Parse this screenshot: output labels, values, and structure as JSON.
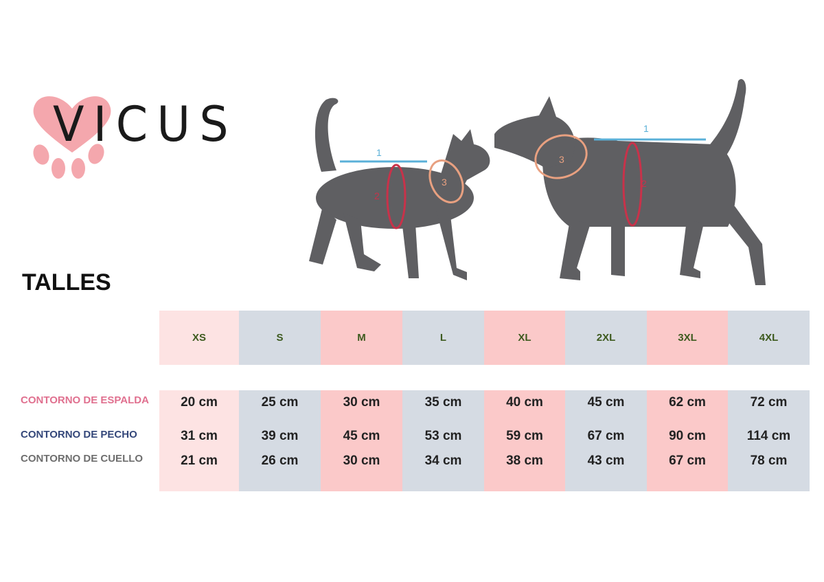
{
  "brand": {
    "name": "VICUS",
    "heart_color": "#f4a7ad"
  },
  "title": "TALLES",
  "diagram": {
    "markers": [
      "1",
      "2",
      "3"
    ],
    "colors": {
      "line1": "#5ab0d8",
      "line2": "#c8324a",
      "line3": "#e8a080",
      "silhouette": "#5f5f62"
    }
  },
  "table": {
    "sizes": [
      "XS",
      "S",
      "M",
      "L",
      "XL",
      "2XL",
      "3XL",
      "4XL"
    ],
    "column_colors": [
      "#fde3e3",
      "#d5dbe3",
      "#fbc9c9",
      "#d5dbe3",
      "#fbc9c9",
      "#d5dbe3",
      "#fbc9c9",
      "#d5dbe3"
    ],
    "rows": [
      {
        "label": "CONTORNO DE ESPALDA",
        "color": "#e0708f",
        "values": [
          "20 cm",
          "25 cm",
          "30 cm",
          "35 cm",
          "40 cm",
          "45 cm",
          "62 cm",
          "72 cm"
        ]
      },
      {
        "label": "CONTORNO DE PECHO",
        "color": "#34477a",
        "values": [
          "31 cm",
          "39 cm",
          "45 cm",
          "53 cm",
          "59 cm",
          "67 cm",
          "90 cm",
          "114 cm"
        ]
      },
      {
        "label": "CONTORNO DE CUELLO",
        "color": "#6e6e6e",
        "values": [
          "21 cm",
          "26 cm",
          "30 cm",
          "34 cm",
          "38 cm",
          "43 cm",
          "67 cm",
          "78 cm"
        ]
      }
    ]
  }
}
